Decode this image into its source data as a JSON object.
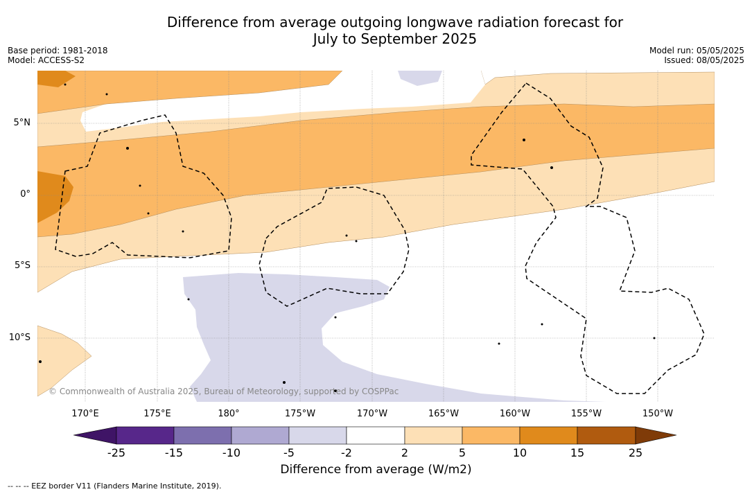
{
  "title_line1": "Difference from average outgoing longwave radiation forecast for",
  "title_line2": "July to September 2025",
  "base_period": "Base period: 1981-2018",
  "model": "Model: ACCESS-S2",
  "model_run": "Model run: 05/05/2025",
  "issued": "Issued: 08/05/2025",
  "lat_labels": [
    "5°N",
    "0°",
    "5°S",
    "10°S"
  ],
  "lon_labels": [
    "170°E",
    "175°E",
    "180°",
    "175°W",
    "170°W",
    "165°W",
    "160°W",
    "155°W",
    "150°W"
  ],
  "colorbar": {
    "ticks": [
      "-25",
      "-15",
      "-10",
      "-5",
      "-2",
      "2",
      "5",
      "10",
      "15",
      "25"
    ],
    "colors": [
      "#3f1466",
      "#57278a",
      "#7d6fae",
      "#afa9d2",
      "#d8d8ea",
      "#ffffff",
      "#fde0b6",
      "#fbb865",
      "#e08a1c",
      "#b05b0f",
      "#7f3b08"
    ],
    "label": "Difference from average (W/m2)"
  },
  "copyright": "© Commonwealth of Australia 2025, Bureau of Meteorology, supported by COSPPac",
  "footnote": "--  --  -- EEZ border V11 (Flanders Marine Institute, 2019)."
}
